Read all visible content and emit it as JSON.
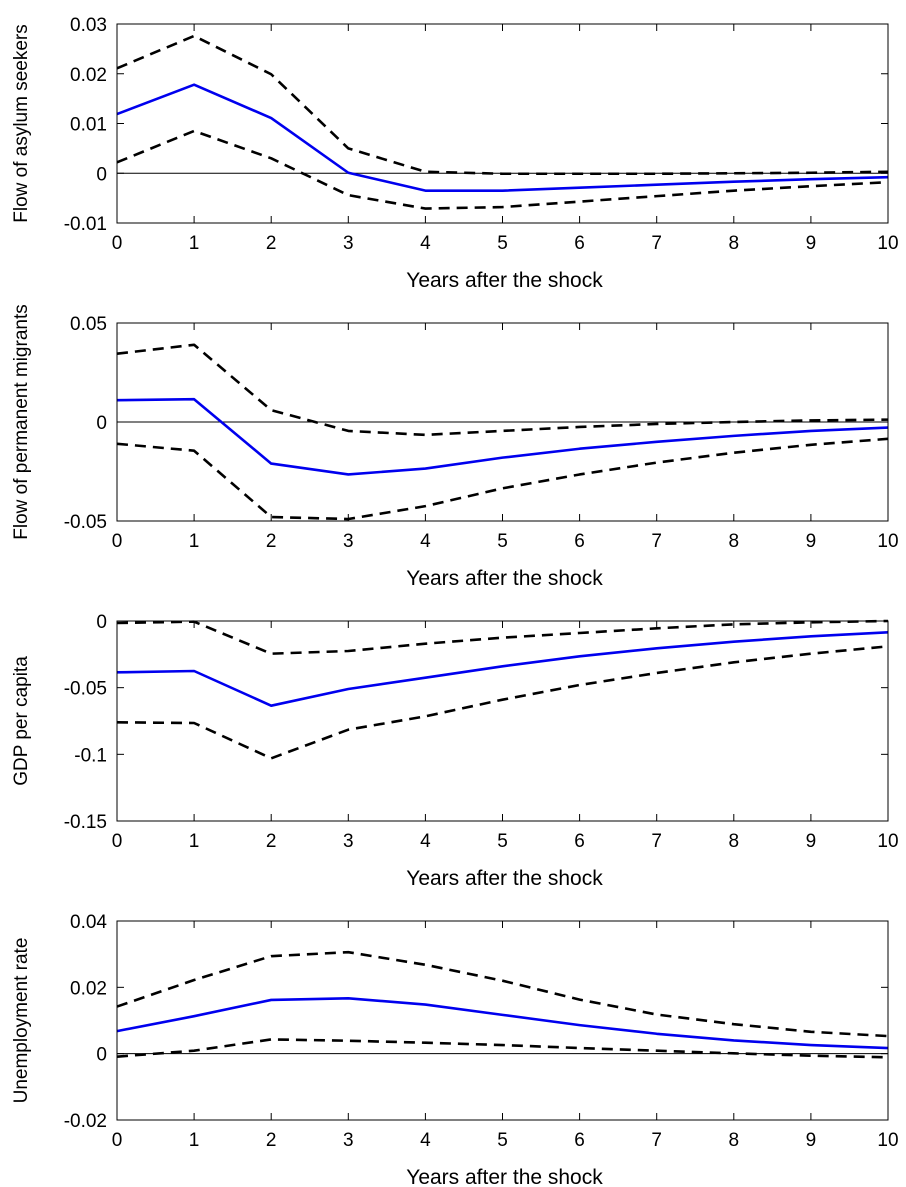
{
  "chart_data": [
    {
      "type": "line",
      "ylabel": "Flow of asylum seekers",
      "xlabel": "Years after the shock",
      "x": [
        0,
        1,
        2,
        3,
        4,
        5,
        6,
        7,
        8,
        9,
        10
      ],
      "xticks": [
        "0",
        "1",
        "2",
        "3",
        "4",
        "5",
        "6",
        "7",
        "8",
        "9",
        "10"
      ],
      "xlim": [
        0,
        10
      ],
      "ylim": [
        -0.01,
        0.03
      ],
      "yticks": [
        "-0.01",
        "0",
        "0.01",
        "0.02",
        "0.03"
      ],
      "grid": false,
      "zero_line": true,
      "series": [
        {
          "style": "solid",
          "color": "#0000ee",
          "values": [
            0.0119,
            0.0178,
            0.0111,
            0.0001,
            -0.0035,
            -0.0035,
            -0.0029,
            -0.0023,
            -0.0017,
            -0.0012,
            -0.0008
          ]
        },
        {
          "style": "dashed",
          "color": "#000000",
          "values": [
            0.0211,
            0.0276,
            0.0199,
            0.005,
            0.0003,
            -0.0001,
            -0.0001,
            -0.0001,
            -0.0,
            0.0001,
            0.0003
          ]
        },
        {
          "style": "dashed",
          "color": "#000000",
          "values": [
            0.0022,
            0.0085,
            0.003,
            -0.0044,
            -0.0071,
            -0.0068,
            -0.0057,
            -0.0046,
            -0.0035,
            -0.0026,
            -0.0018
          ]
        }
      ]
    },
    {
      "type": "line",
      "ylabel": "Flow of permanent migrants",
      "xlabel": "Years after the shock",
      "x": [
        0,
        1,
        2,
        3,
        4,
        5,
        6,
        7,
        8,
        9,
        10
      ],
      "xticks": [
        "0",
        "1",
        "2",
        "3",
        "4",
        "5",
        "6",
        "7",
        "8",
        "9",
        "10"
      ],
      "xlim": [
        0,
        10
      ],
      "ylim": [
        -0.05,
        0.05
      ],
      "yticks": [
        "-0.05",
        "0",
        "0.05"
      ],
      "grid": false,
      "zero_line": true,
      "series": [
        {
          "style": "solid",
          "color": "#0000ee",
          "values": [
            0.011,
            0.0115,
            -0.021,
            -0.0265,
            -0.0235,
            -0.018,
            -0.0135,
            -0.01,
            -0.007,
            -0.0045,
            -0.0028
          ]
        },
        {
          "style": "dashed",
          "color": "#000000",
          "values": [
            0.0345,
            0.039,
            0.006,
            -0.0045,
            -0.0065,
            -0.0045,
            -0.0025,
            -0.001,
            0.0,
            0.0008,
            0.0012
          ]
        },
        {
          "style": "dashed",
          "color": "#000000",
          "values": [
            -0.011,
            -0.0145,
            -0.048,
            -0.049,
            -0.0425,
            -0.0335,
            -0.0265,
            -0.0205,
            -0.0155,
            -0.0115,
            -0.0085
          ]
        }
      ]
    },
    {
      "type": "line",
      "ylabel": "GDP per capita",
      "xlabel": "Years after the shock",
      "x": [
        0,
        1,
        2,
        3,
        4,
        5,
        6,
        7,
        8,
        9,
        10
      ],
      "xticks": [
        "0",
        "1",
        "2",
        "3",
        "4",
        "5",
        "6",
        "7",
        "8",
        "9",
        "10"
      ],
      "xlim": [
        0,
        10
      ],
      "ylim": [
        -0.15,
        0
      ],
      "yticks": [
        "-0.15",
        "-0.1",
        "-0.05",
        "0"
      ],
      "grid": false,
      "zero_line": false,
      "series": [
        {
          "style": "solid",
          "color": "#0000ee",
          "values": [
            -0.0385,
            -0.0375,
            -0.0635,
            -0.051,
            -0.0425,
            -0.034,
            -0.0265,
            -0.0205,
            -0.0155,
            -0.0115,
            -0.0085
          ]
        },
        {
          "style": "dashed",
          "color": "#000000",
          "values": [
            -0.0015,
            -0.0005,
            -0.0245,
            -0.0225,
            -0.017,
            -0.0125,
            -0.009,
            -0.0055,
            -0.0025,
            -0.001,
            0.0
          ]
        },
        {
          "style": "dashed",
          "color": "#000000",
          "values": [
            -0.076,
            -0.0765,
            -0.103,
            -0.0815,
            -0.0715,
            -0.059,
            -0.048,
            -0.039,
            -0.031,
            -0.0245,
            -0.019
          ]
        }
      ]
    },
    {
      "type": "line",
      "ylabel": "Unemployment rate",
      "xlabel": "Years after the shock",
      "x": [
        0,
        1,
        2,
        3,
        4,
        5,
        6,
        7,
        8,
        9,
        10
      ],
      "xticks": [
        "0",
        "1",
        "2",
        "3",
        "4",
        "5",
        "6",
        "7",
        "8",
        "9",
        "10"
      ],
      "xlim": [
        0,
        10
      ],
      "ylim": [
        -0.02,
        0.04
      ],
      "yticks": [
        "-0.02",
        "0",
        "0.02",
        "0.04"
      ],
      "grid": false,
      "zero_line": true,
      "series": [
        {
          "style": "solid",
          "color": "#0000ee",
          "values": [
            0.0068,
            0.0113,
            0.0162,
            0.0167,
            0.0148,
            0.0117,
            0.0086,
            0.006,
            0.004,
            0.0026,
            0.0017
          ]
        },
        {
          "style": "dashed",
          "color": "#000000",
          "values": [
            0.0142,
            0.0222,
            0.0294,
            0.0306,
            0.0268,
            0.022,
            0.0163,
            0.0118,
            0.0089,
            0.0066,
            0.0053
          ]
        },
        {
          "style": "dashed",
          "color": "#000000",
          "values": [
            -0.0009,
            0.0009,
            0.0043,
            0.0039,
            0.0033,
            0.0026,
            0.0017,
            0.0009,
            0.0001,
            -0.0006,
            -0.0011
          ]
        }
      ]
    }
  ]
}
